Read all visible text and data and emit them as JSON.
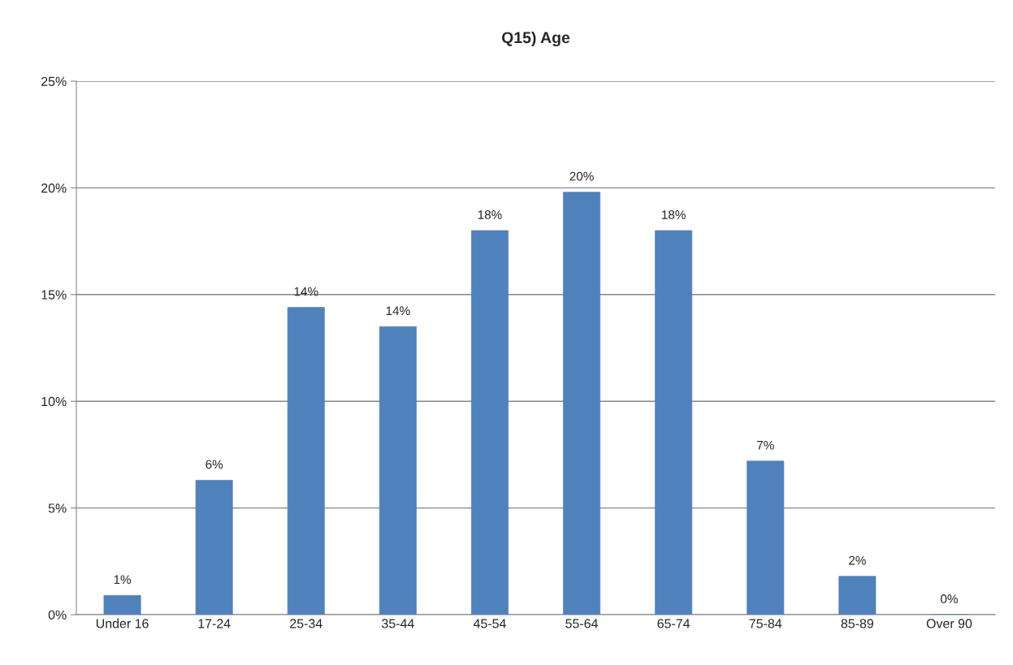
{
  "chart_data": {
    "type": "bar",
    "title": "Q15) Age",
    "categories": [
      "Under 16",
      "17-24",
      "25-34",
      "35-44",
      "45-54",
      "55-64",
      "65-74",
      "75-84",
      "85-89",
      "Over 90"
    ],
    "values": [
      0.9,
      6.3,
      14.4,
      13.5,
      18.0,
      19.8,
      18.0,
      7.2,
      1.8,
      0
    ],
    "value_labels": [
      "1%",
      "6%",
      "14%",
      "14%",
      "18%",
      "20%",
      "18%",
      "7%",
      "2%",
      "0%"
    ],
    "color": "#4f81bd",
    "ylim": [
      0,
      25
    ],
    "yticks": [
      {
        "value": 0,
        "label": "0%"
      },
      {
        "value": 5,
        "label": "5%"
      },
      {
        "value": 10,
        "label": "10%"
      },
      {
        "value": 15,
        "label": "15%"
      },
      {
        "value": 20,
        "label": "20%"
      },
      {
        "value": 25,
        "label": "25%"
      }
    ],
    "grid": "y",
    "legend": false
  }
}
